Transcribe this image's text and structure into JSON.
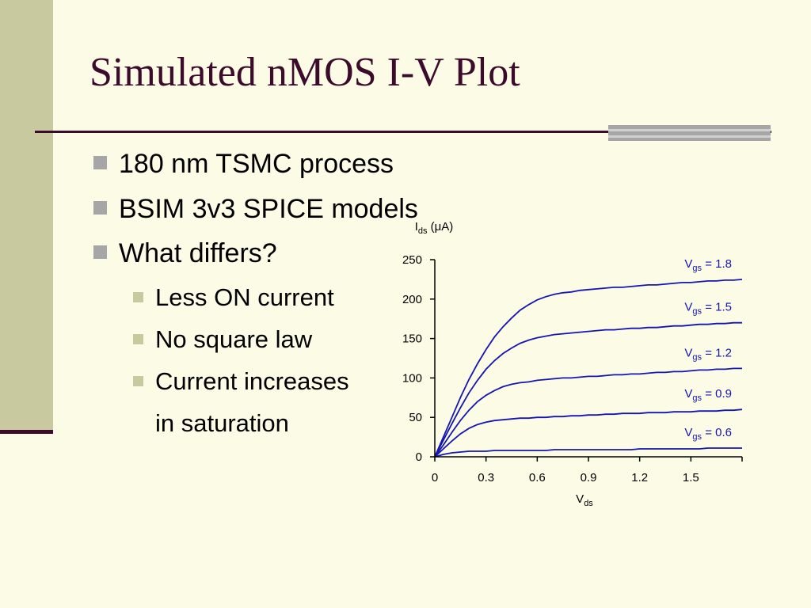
{
  "slide": {
    "title": "Simulated nMOS I-V Plot",
    "colors": {
      "title": "#3c0a2a",
      "background": "#fbfbe6",
      "band": "#c9c9a0",
      "bullet": "#a6a6a6",
      "curve": "#1515b4"
    },
    "bullets": [
      {
        "level": 1,
        "text": "180 nm TSMC process"
      },
      {
        "level": 1,
        "text": "BSIM 3v3 SPICE models"
      },
      {
        "level": 1,
        "text": "What differs?"
      },
      {
        "level": 2,
        "text": "Less ON current"
      },
      {
        "level": 2,
        "text": "No square law"
      },
      {
        "level": 2,
        "text": "Current increases"
      }
    ],
    "continuation": "in saturation"
  },
  "chart_data": {
    "type": "line",
    "ylabel": {
      "main": "I",
      "sub": "ds",
      "unit": "(μA)"
    },
    "xlabel": {
      "main": "V",
      "sub": "ds"
    },
    "xlim": [
      0,
      1.8
    ],
    "ylim": [
      0,
      250
    ],
    "xticks": [
      0,
      0.3,
      0.6,
      0.9,
      1.2,
      1.5,
      1.8
    ],
    "xtick_labels": [
      "0",
      "0.3",
      "0.6",
      "0.9",
      "1.2",
      "1.5",
      ""
    ],
    "yticks": [
      0,
      50,
      100,
      150,
      200,
      250
    ],
    "ytick_labels": [
      "0",
      "50",
      "100",
      "150",
      "200",
      "250"
    ],
    "x": [
      0,
      0.05,
      0.1,
      0.15,
      0.2,
      0.25,
      0.3,
      0.35,
      0.4,
      0.45,
      0.5,
      0.55,
      0.6,
      0.65,
      0.7,
      0.75,
      0.8,
      0.85,
      0.9,
      0.95,
      1.0,
      1.05,
      1.1,
      1.15,
      1.2,
      1.25,
      1.3,
      1.35,
      1.4,
      1.45,
      1.5,
      1.55,
      1.6,
      1.65,
      1.7,
      1.75,
      1.8
    ],
    "series": [
      {
        "label": {
          "main": "V",
          "sub": "gs",
          "value": " = 1.8"
        },
        "values": [
          0,
          25,
          50,
          75,
          98,
          118,
          136,
          152,
          165,
          176,
          186,
          193,
          199,
          203,
          206,
          208,
          209,
          211,
          212,
          213,
          214,
          215,
          215,
          216,
          217,
          218,
          218,
          219,
          220,
          221,
          221,
          222,
          223,
          223,
          224,
          224,
          225
        ]
      },
      {
        "label": {
          "main": "V",
          "sub": "gs",
          "value": " = 1.5"
        },
        "values": [
          0,
          21,
          42,
          62,
          81,
          97,
          111,
          122,
          131,
          138,
          144,
          148,
          151,
          153,
          155,
          156,
          157,
          158,
          159,
          160,
          161,
          161,
          162,
          163,
          163,
          164,
          164,
          165,
          166,
          166,
          167,
          168,
          168,
          169,
          169,
          170,
          170
        ]
      },
      {
        "label": {
          "main": "V",
          "sub": "gs",
          "value": " = 1.2"
        },
        "values": [
          0,
          15,
          31,
          46,
          59,
          70,
          78,
          84,
          89,
          92,
          94,
          95,
          97,
          98,
          99,
          100,
          100,
          101,
          102,
          102,
          103,
          104,
          104,
          105,
          105,
          106,
          107,
          107,
          108,
          108,
          109,
          110,
          110,
          111,
          111,
          112,
          112
        ]
      },
      {
        "label": {
          "main": "V",
          "sub": "gs",
          "value": " = 0.9"
        },
        "values": [
          0,
          10,
          20,
          29,
          36,
          41,
          44,
          46,
          47,
          48,
          49,
          49,
          50,
          50,
          51,
          51,
          52,
          52,
          53,
          53,
          54,
          54,
          55,
          55,
          55,
          56,
          56,
          56,
          57,
          57,
          57,
          58,
          58,
          58,
          59,
          59,
          60
        ]
      },
      {
        "label": {
          "main": "V",
          "sub": "gs",
          "value": " = 0.6"
        },
        "values": [
          0,
          3,
          5,
          6,
          7,
          7,
          7,
          8,
          8,
          8,
          8,
          8,
          8,
          8,
          9,
          9,
          9,
          9,
          9,
          9,
          9,
          9,
          9,
          9,
          10,
          10,
          10,
          10,
          10,
          10,
          10,
          10,
          11,
          11,
          11,
          11,
          11
        ]
      }
    ]
  }
}
